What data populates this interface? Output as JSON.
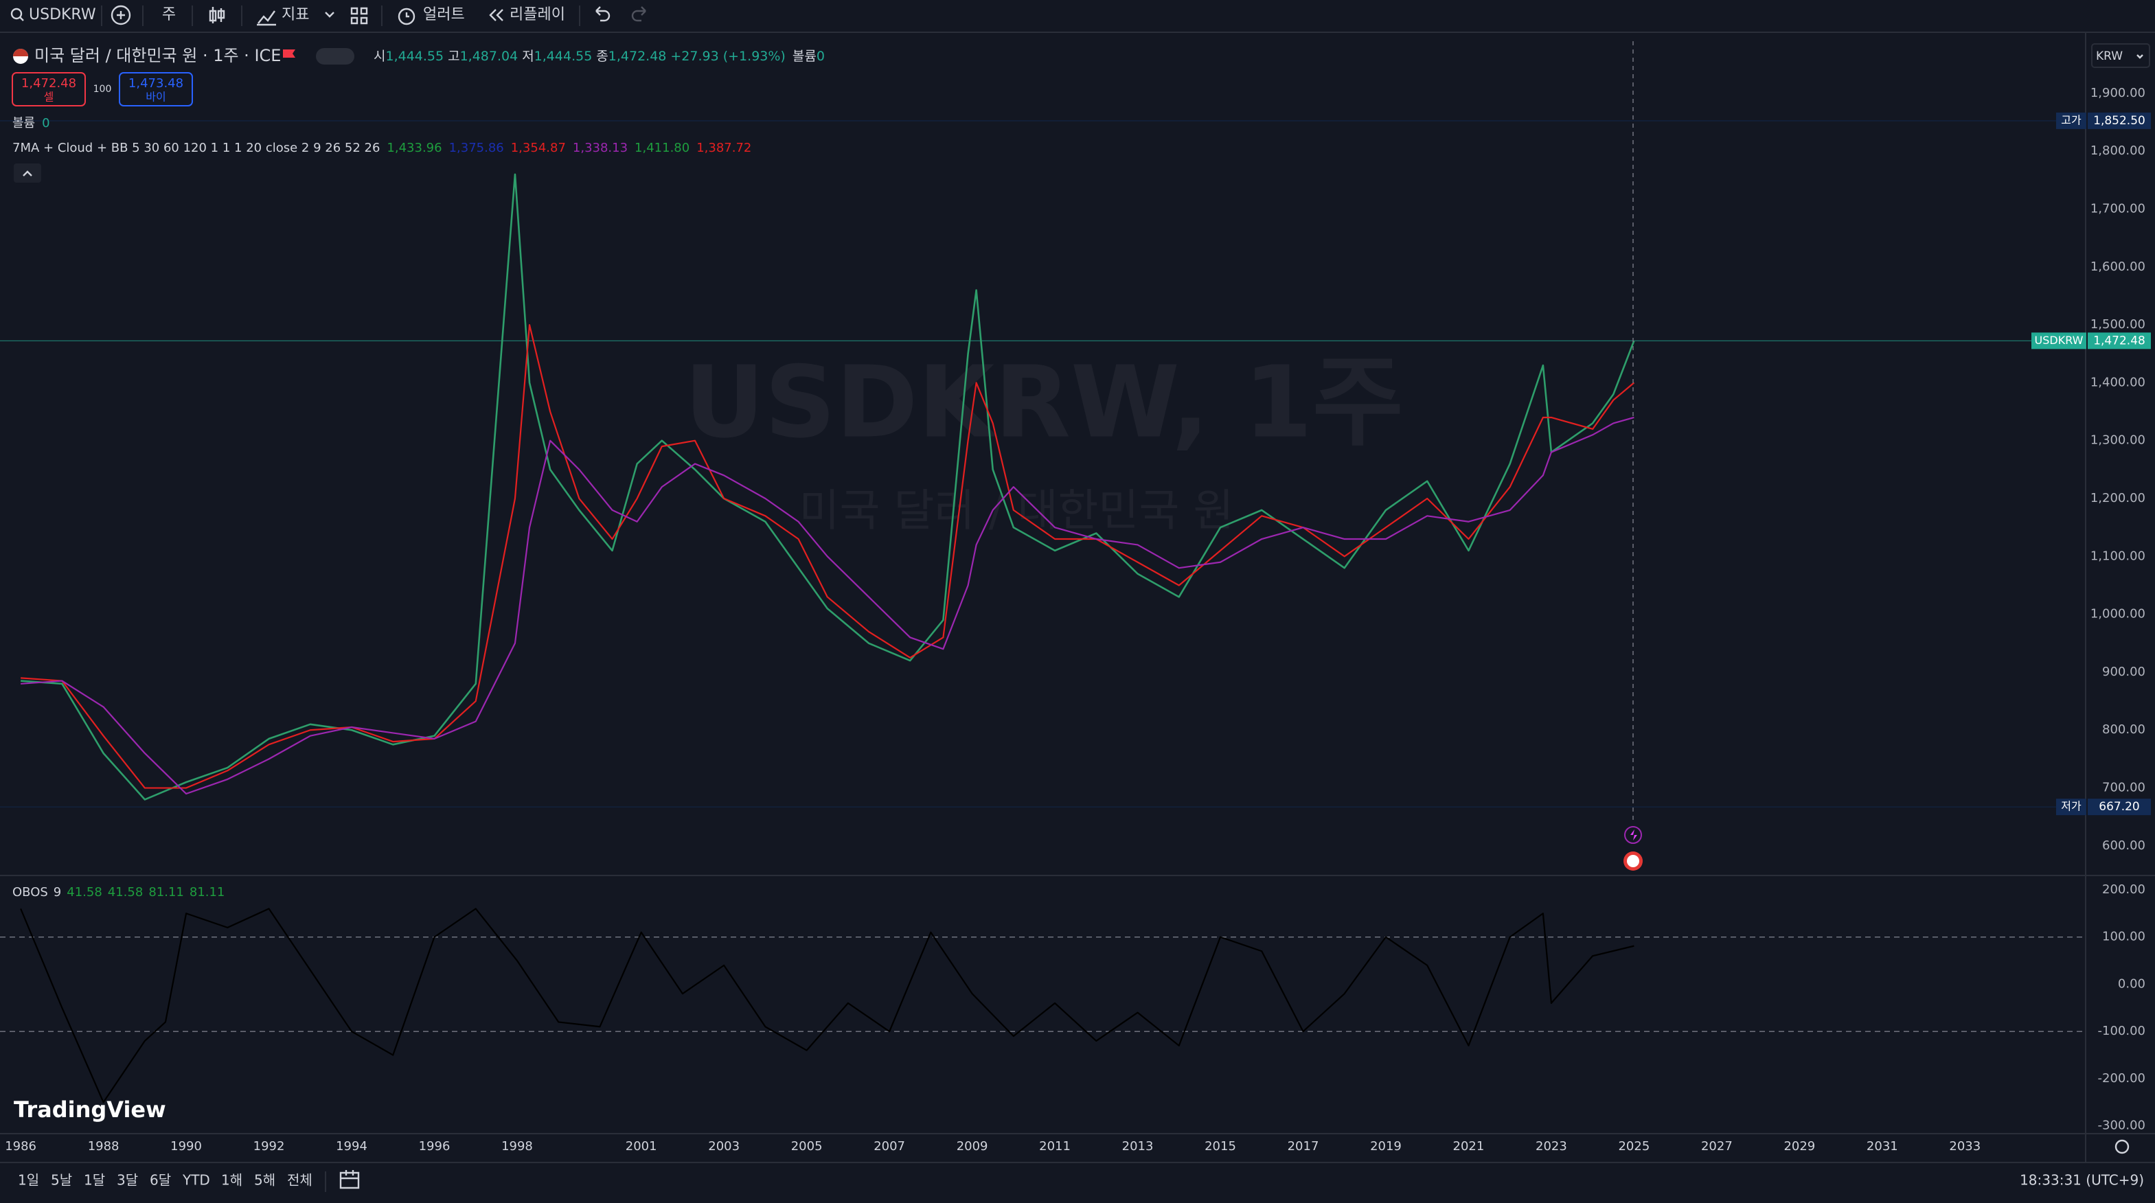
{
  "toolbar": {
    "symbol": "USDKRW",
    "interval": "주",
    "indicators": "지표",
    "alerts": "얼러트",
    "replay": "리플레이"
  },
  "legend": {
    "title": "미국 달러 / 대한민국 원 · 1주 · ICE",
    "open_label": "시",
    "open": "1,444.55",
    "high_label": "고",
    "high": "1,487.04",
    "low_label": "저",
    "low": "1,444.55",
    "close_label": "종",
    "close": "1,472.48",
    "change": "+27.93 (+1.93%)",
    "volume_label": "볼륨",
    "volume": "0"
  },
  "trade": {
    "sell_price": "1,472.48",
    "sell_label": "셀",
    "spread": "100",
    "buy_price": "1,473.48",
    "buy_label": "바이"
  },
  "volume_legend": {
    "label": "볼륨",
    "value": "0"
  },
  "ma_legend": {
    "name": "7MA + Cloud + BB 5 30 60 120 1 1 1 20 close 2 9 26 52 26",
    "values": [
      {
        "text": "1,433.96",
        "color": "#1e9e3e"
      },
      {
        "text": "1,375.86",
        "color": "#1a2fb0"
      },
      {
        "text": "1,354.87",
        "color": "#e32020"
      },
      {
        "text": "1,338.13",
        "color": "#9c27b0"
      },
      {
        "text": "1,411.80",
        "color": "#1e9e3e"
      },
      {
        "text": "1,387.72",
        "color": "#e32020"
      }
    ]
  },
  "watermark": {
    "symbol": "USDKRW, 1주",
    "name": "미국 달러 / 대한민국 원"
  },
  "currency": "KRW",
  "branding": "TradingView",
  "timeframes": [
    "1일",
    "5날",
    "1달",
    "3달",
    "6달",
    "YTD",
    "1해",
    "5해",
    "전체"
  ],
  "clock": "18:33:31 (UTC+9)",
  "chart_data": [
    {
      "type": "line",
      "x": [
        1986,
        1987,
        1988,
        1989,
        1990,
        1991,
        1992,
        1993,
        1994,
        1995,
        1996,
        1997,
        1997.95,
        1998.3,
        1998.8,
        1999.5,
        2000.3,
        2000.9,
        2001.5,
        2002.3,
        2003,
        2004,
        2004.8,
        2005.5,
        2006.5,
        2007.5,
        2008.3,
        2008.9,
        2009.1,
        2009.5,
        2010,
        2011,
        2012,
        2013,
        2014,
        2015,
        2016,
        2017,
        2018,
        2019,
        2020,
        2021,
        2022,
        2022.8,
        2023,
        2024,
        2024.5,
        2025
      ],
      "series": [
        {
          "color": "#2e9e6b",
          "values": [
            885,
            880,
            760,
            680,
            710,
            735,
            785,
            810,
            800,
            775,
            790,
            880,
            1760,
            1400,
            1250,
            1180,
            1110,
            1260,
            1300,
            1250,
            1200,
            1160,
            1080,
            1010,
            950,
            920,
            990,
            1450,
            1560,
            1250,
            1150,
            1110,
            1140,
            1070,
            1030,
            1150,
            1180,
            1130,
            1080,
            1180,
            1230,
            1110,
            1260,
            1430,
            1280,
            1330,
            1380,
            1472.48
          ]
        },
        {
          "color": "#e32020",
          "values": [
            890,
            885,
            790,
            700,
            700,
            730,
            775,
            800,
            805,
            780,
            785,
            850,
            1200,
            1500,
            1350,
            1200,
            1130,
            1200,
            1290,
            1300,
            1200,
            1170,
            1130,
            1030,
            970,
            925,
            960,
            1300,
            1400,
            1330,
            1180,
            1130,
            1130,
            1090,
            1050,
            1110,
            1170,
            1150,
            1100,
            1150,
            1200,
            1130,
            1220,
            1340,
            1340,
            1320,
            1370,
            1400
          ]
        },
        {
          "color": "#9c27b0",
          "values": [
            880,
            885,
            840,
            760,
            690,
            715,
            750,
            790,
            805,
            795,
            785,
            815,
            950,
            1150,
            1300,
            1250,
            1180,
            1160,
            1220,
            1260,
            1240,
            1200,
            1160,
            1100,
            1030,
            960,
            940,
            1050,
            1120,
            1180,
            1220,
            1150,
            1130,
            1120,
            1080,
            1090,
            1130,
            1150,
            1130,
            1130,
            1170,
            1160,
            1180,
            1240,
            1280,
            1310,
            1330,
            1340
          ]
        }
      ],
      "xlim": [
        1985.5,
        2035.9
      ],
      "xticks": [
        1986,
        1988,
        1990,
        1992,
        1994,
        1996,
        1998,
        2001,
        2003,
        2005,
        2007,
        2009,
        2011,
        2013,
        2015,
        2017,
        2019,
        2021,
        2023,
        2025,
        2027,
        2029,
        2031,
        2033
      ],
      "ylim": [
        550,
        1990
      ],
      "yticks": [
        {
          "value": 600,
          "label": "600.00"
        },
        {
          "value": 700,
          "label": "700.00"
        },
        {
          "value": 800,
          "label": "800.00"
        },
        {
          "value": 900,
          "label": "900.00"
        },
        {
          "value": 1000,
          "label": "1,000.00"
        },
        {
          "value": 1100,
          "label": "1,100.00"
        },
        {
          "value": 1200,
          "label": "1,200.00"
        },
        {
          "value": 1300,
          "label": "1,300.00"
        },
        {
          "value": 1400,
          "label": "1,400.00"
        },
        {
          "value": 1500,
          "label": "1,500.00"
        },
        {
          "value": 1600,
          "label": "1,600.00"
        },
        {
          "value": 1700,
          "label": "1,700.00"
        },
        {
          "value": 1800,
          "label": "1,800.00"
        },
        {
          "value": 1900,
          "label": "1,900.00"
        }
      ],
      "markers": [
        {
          "label": "고가",
          "value": 1852.5,
          "value_label": "1,852.50",
          "color": "#132b54"
        },
        {
          "label": "USDKRW",
          "value": 1472.48,
          "value_label": "1,472.48",
          "color": "#22ab94"
        },
        {
          "label": "저가",
          "value": 667.2,
          "value_label": "667.20",
          "color": "#132b54"
        }
      ]
    },
    {
      "type": "line",
      "title": "OBOS",
      "length": 9,
      "legend_values": [
        41.58,
        41.58,
        81.11,
        81.11
      ],
      "x": [
        1986,
        1987,
        1988,
        1989,
        1989.5,
        1990,
        1991,
        1992,
        1993,
        1994,
        1995,
        1996,
        1997,
        1998,
        1999,
        2000,
        2001,
        2002,
        2003,
        2004,
        2005,
        2006,
        2007,
        2008,
        2009,
        2010,
        2011,
        2012,
        2013,
        2014,
        2015,
        2016,
        2017,
        2018,
        2019,
        2020,
        2021,
        2022,
        2022.8,
        2023,
        2024,
        2025
      ],
      "series": [
        {
          "color": "#000000",
          "values": [
            160,
            -50,
            -250,
            -120,
            -80,
            150,
            120,
            160,
            30,
            -100,
            -150,
            100,
            160,
            50,
            -80,
            -90,
            110,
            -20,
            40,
            -90,
            -140,
            -40,
            -100,
            110,
            -20,
            -110,
            -40,
            -120,
            -60,
            -130,
            100,
            70,
            -100,
            -20,
            100,
            40,
            -130,
            100,
            150,
            -40,
            60,
            81.11
          ]
        }
      ],
      "xlim": [
        1985.5,
        2035.9
      ],
      "ylim": [
        -315,
        226
      ],
      "yticks": [
        {
          "value": 200,
          "label": "200.00"
        },
        {
          "value": 100,
          "label": "100.00"
        },
        {
          "value": 0,
          "label": "0.00"
        },
        {
          "value": -100,
          "label": "-100.00"
        },
        {
          "value": -200,
          "label": "-200.00"
        },
        {
          "value": -300,
          "label": "-300.00"
        }
      ],
      "levels": [
        100,
        -100
      ]
    }
  ]
}
